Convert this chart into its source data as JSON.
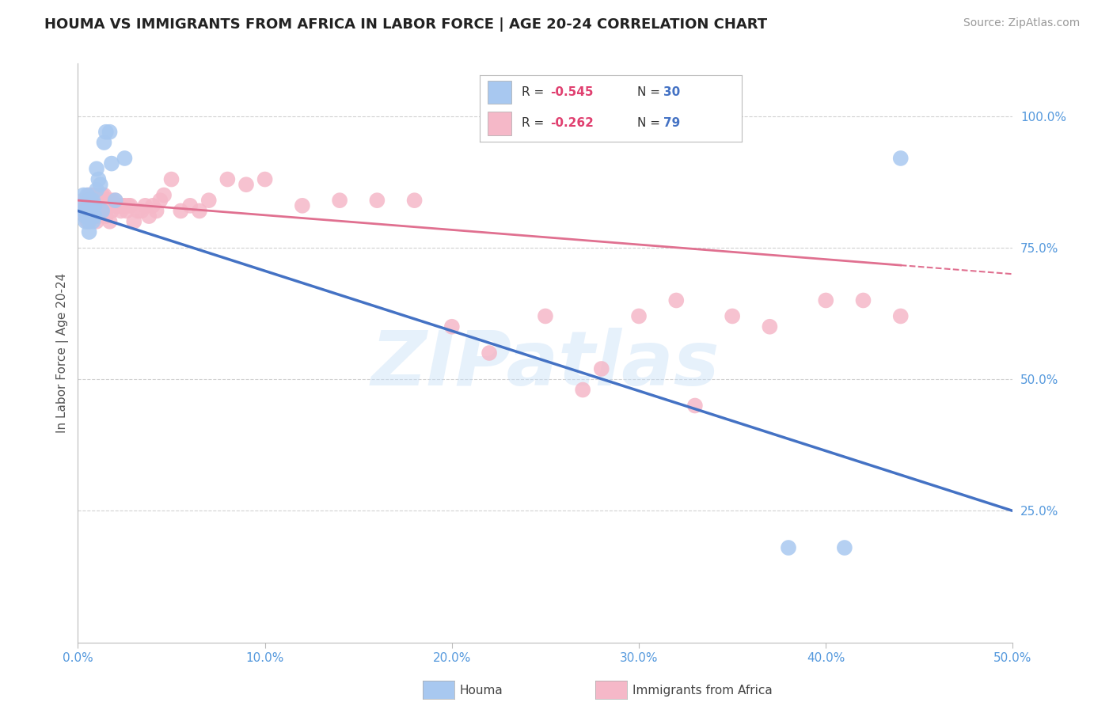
{
  "title": "HOUMA VS IMMIGRANTS FROM AFRICA IN LABOR FORCE | AGE 20-24 CORRELATION CHART",
  "source": "Source: ZipAtlas.com",
  "ylabel": "In Labor Force | Age 20-24",
  "xlim": [
    0.0,
    0.5
  ],
  "ylim": [
    0.0,
    1.1
  ],
  "xtick_labels": [
    "0.0%",
    "10.0%",
    "20.0%",
    "30.0%",
    "40.0%",
    "50.0%"
  ],
  "xtick_values": [
    0.0,
    0.1,
    0.2,
    0.3,
    0.4,
    0.5
  ],
  "ytick_labels_right": [
    "25.0%",
    "50.0%",
    "75.0%",
    "100.0%"
  ],
  "ytick_values_right": [
    0.25,
    0.5,
    0.75,
    1.0
  ],
  "houma_color": "#a8c8f0",
  "africa_color": "#f5b8c8",
  "houma_line_color": "#4472c4",
  "africa_line_color": "#e07090",
  "background_color": "#ffffff",
  "grid_color": "#cccccc",
  "watermark_text": "ZIPatlas",
  "houma_line_x0": 0.0,
  "houma_line_y0": 0.82,
  "houma_line_x1": 0.5,
  "houma_line_y1": 0.25,
  "africa_line_x0": 0.0,
  "africa_line_y0": 0.84,
  "africa_line_x1_solid": 0.44,
  "africa_line_x1": 0.5,
  "africa_line_y1": 0.7,
  "houma_x": [
    0.002,
    0.003,
    0.003,
    0.004,
    0.004,
    0.005,
    0.005,
    0.006,
    0.006,
    0.006,
    0.007,
    0.007,
    0.008,
    0.008,
    0.009,
    0.009,
    0.01,
    0.01,
    0.011,
    0.012,
    0.013,
    0.014,
    0.015,
    0.017,
    0.018,
    0.02,
    0.025,
    0.38,
    0.41,
    0.44
  ],
  "houma_y": [
    0.83,
    0.85,
    0.82,
    0.81,
    0.8,
    0.85,
    0.82,
    0.84,
    0.8,
    0.78,
    0.84,
    0.81,
    0.84,
    0.8,
    0.81,
    0.83,
    0.9,
    0.86,
    0.88,
    0.87,
    0.82,
    0.95,
    0.97,
    0.97,
    0.91,
    0.84,
    0.92,
    0.18,
    0.18,
    0.92
  ],
  "africa_x": [
    0.002,
    0.003,
    0.003,
    0.004,
    0.004,
    0.005,
    0.005,
    0.005,
    0.006,
    0.006,
    0.006,
    0.007,
    0.007,
    0.008,
    0.008,
    0.009,
    0.009,
    0.01,
    0.01,
    0.01,
    0.011,
    0.011,
    0.012,
    0.012,
    0.013,
    0.013,
    0.014,
    0.014,
    0.015,
    0.015,
    0.016,
    0.017,
    0.017,
    0.018,
    0.018,
    0.019,
    0.02,
    0.021,
    0.022,
    0.023,
    0.024,
    0.025,
    0.026,
    0.027,
    0.028,
    0.03,
    0.032,
    0.034,
    0.036,
    0.038,
    0.04,
    0.042,
    0.044,
    0.046,
    0.05,
    0.055,
    0.06,
    0.065,
    0.07,
    0.08,
    0.09,
    0.1,
    0.12,
    0.14,
    0.16,
    0.18,
    0.2,
    0.22,
    0.25,
    0.28,
    0.3,
    0.32,
    0.35,
    0.37,
    0.4,
    0.42,
    0.44,
    0.27,
    0.33
  ],
  "africa_y": [
    0.83,
    0.84,
    0.82,
    0.83,
    0.81,
    0.84,
    0.82,
    0.8,
    0.85,
    0.82,
    0.8,
    0.84,
    0.82,
    0.85,
    0.82,
    0.84,
    0.81,
    0.84,
    0.82,
    0.8,
    0.84,
    0.81,
    0.84,
    0.82,
    0.85,
    0.82,
    0.85,
    0.82,
    0.83,
    0.81,
    0.84,
    0.83,
    0.8,
    0.84,
    0.82,
    0.83,
    0.84,
    0.83,
    0.83,
    0.82,
    0.83,
    0.83,
    0.82,
    0.83,
    0.83,
    0.8,
    0.82,
    0.82,
    0.83,
    0.81,
    0.83,
    0.82,
    0.84,
    0.85,
    0.88,
    0.82,
    0.83,
    0.82,
    0.84,
    0.88,
    0.87,
    0.88,
    0.83,
    0.84,
    0.84,
    0.84,
    0.6,
    0.55,
    0.62,
    0.52,
    0.62,
    0.65,
    0.62,
    0.6,
    0.65,
    0.65,
    0.62,
    0.48,
    0.45
  ]
}
